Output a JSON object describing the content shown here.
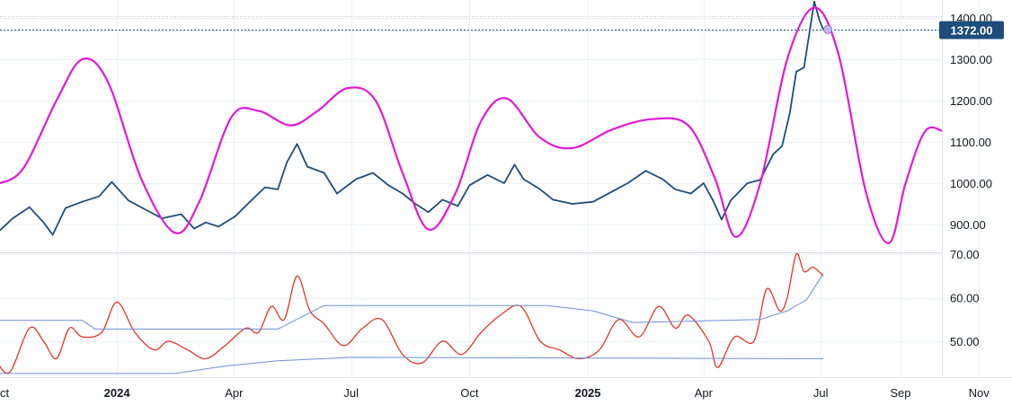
{
  "chart_data": [
    {
      "type": "line",
      "panel": "price",
      "y_axis": {
        "ticks": [
          "900.00",
          "1000.00",
          "1100.00",
          "1200.00",
          "1300.00",
          "1400.00"
        ],
        "tick_values": [
          900,
          1000,
          1100,
          1200,
          1300,
          1400
        ],
        "range": [
          860,
          1450
        ]
      },
      "x_axis": {
        "ticks": [
          "ct",
          "2024",
          "Apr",
          "Jul",
          "Oct",
          "2025",
          "Apr",
          "Jul",
          "Sep",
          "Nov"
        ],
        "bold_ticks": [
          "2024",
          "2025"
        ],
        "range": [
          "2023-09-30",
          "2025-12-15"
        ]
      },
      "last_price_label": "1372.00",
      "last_price": 1372,
      "upper_dotted_level": 1405,
      "series": [
        {
          "role": "price",
          "color": "#1e4d7a",
          "points": [
            [
              "2023-09-30",
              880
            ],
            [
              "2023-10-12",
              915
            ],
            [
              "2023-10-25",
              942
            ],
            [
              "2023-11-05",
              905
            ],
            [
              "2023-11-12",
              875
            ],
            [
              "2023-11-22",
              940
            ],
            [
              "2023-12-05",
              955
            ],
            [
              "2023-12-18",
              968
            ],
            [
              "2023-12-28",
              1003
            ],
            [
              "2024-01-10",
              958
            ],
            [
              "2024-01-22",
              938
            ],
            [
              "2024-02-05",
              915
            ],
            [
              "2024-02-20",
              925
            ],
            [
              "2024-03-01",
              890
            ],
            [
              "2024-03-10",
              905
            ],
            [
              "2024-03-20",
              895
            ],
            [
              "2024-04-02",
              920
            ],
            [
              "2024-04-15",
              960
            ],
            [
              "2024-04-25",
              990
            ],
            [
              "2024-05-05",
              985
            ],
            [
              "2024-05-12",
              1050
            ],
            [
              "2024-05-20",
              1095
            ],
            [
              "2024-05-28",
              1040
            ],
            [
              "2024-06-10",
              1025
            ],
            [
              "2024-06-20",
              975
            ],
            [
              "2024-07-05",
              1010
            ],
            [
              "2024-07-18",
              1025
            ],
            [
              "2024-07-30",
              995
            ],
            [
              "2024-08-10",
              975
            ],
            [
              "2024-08-20",
              950
            ],
            [
              "2024-08-30",
              930
            ],
            [
              "2024-09-10",
              960
            ],
            [
              "2024-09-22",
              945
            ],
            [
              "2024-10-01",
              995
            ],
            [
              "2024-10-15",
              1020
            ],
            [
              "2024-10-28",
              1000
            ],
            [
              "2024-11-05",
              1045
            ],
            [
              "2024-11-12",
              1010
            ],
            [
              "2024-11-25",
              985
            ],
            [
              "2024-12-05",
              960
            ],
            [
              "2024-12-20",
              950
            ],
            [
              "2025-01-05",
              955
            ],
            [
              "2025-01-20",
              980
            ],
            [
              "2025-02-01",
              1000
            ],
            [
              "2025-02-15",
              1030
            ],
            [
              "2025-02-28",
              1010
            ],
            [
              "2025-03-10",
              985
            ],
            [
              "2025-03-22",
              975
            ],
            [
              "2025-04-01",
              1000
            ],
            [
              "2025-04-08",
              960
            ],
            [
              "2025-04-15",
              912
            ],
            [
              "2025-04-22",
              958
            ],
            [
              "2025-05-05",
              1000
            ],
            [
              "2025-05-15",
              1008
            ],
            [
              "2025-05-25",
              1070
            ],
            [
              "2025-06-01",
              1090
            ],
            [
              "2025-06-07",
              1170
            ],
            [
              "2025-06-12",
              1270
            ],
            [
              "2025-06-18",
              1280
            ],
            [
              "2025-06-22",
              1360
            ],
            [
              "2025-06-26",
              1440
            ],
            [
              "2025-06-30",
              1395
            ],
            [
              "2025-07-03",
              1372
            ]
          ]
        },
        {
          "role": "cycle",
          "color": "#e219d6",
          "points": [
            [
              "2023-09-30",
              998
            ],
            [
              "2023-10-20",
              1035
            ],
            [
              "2023-11-15",
              1200
            ],
            [
              "2023-12-05",
              1300
            ],
            [
              "2023-12-25",
              1245
            ],
            [
              "2024-01-20",
              1010
            ],
            [
              "2024-02-15",
              880
            ],
            [
              "2024-03-05",
              955
            ],
            [
              "2024-03-30",
              1160
            ],
            [
              "2024-04-20",
              1175
            ],
            [
              "2024-05-15",
              1140
            ],
            [
              "2024-06-05",
              1175
            ],
            [
              "2024-06-28",
              1230
            ],
            [
              "2024-07-20",
              1200
            ],
            [
              "2024-08-10",
              1025
            ],
            [
              "2024-08-30",
              888
            ],
            [
              "2024-09-20",
              975
            ],
            [
              "2024-10-10",
              1150
            ],
            [
              "2024-10-30",
              1205
            ],
            [
              "2024-11-25",
              1110
            ],
            [
              "2024-12-20",
              1085
            ],
            [
              "2025-01-20",
              1130
            ],
            [
              "2025-02-20",
              1155
            ],
            [
              "2025-03-20",
              1140
            ],
            [
              "2025-04-10",
              1010
            ],
            [
              "2025-04-26",
              870
            ],
            [
              "2025-05-15",
              1000
            ],
            [
              "2025-06-05",
              1300
            ],
            [
              "2025-06-26",
              1425
            ],
            [
              "2025-07-15",
              1310
            ],
            [
              "2025-08-05",
              980
            ],
            [
              "2025-08-23",
              855
            ],
            [
              "2025-09-05",
              1000
            ],
            [
              "2025-09-20",
              1125
            ],
            [
              "2025-10-05",
              1125
            ],
            [
              "2025-10-26",
              1097
            ],
            [
              "2025-11-15",
              1158
            ],
            [
              "2025-11-30",
              1165
            ],
            [
              "2025-12-15",
              1100
            ]
          ]
        }
      ]
    },
    {
      "type": "line",
      "panel": "oscillator",
      "y_axis": {
        "ticks": [
          "50.00",
          "60.00",
          "70.00"
        ],
        "tick_values": [
          50,
          60,
          70
        ],
        "range": [
          43,
          71
        ]
      },
      "series": [
        {
          "role": "oscillator",
          "color": "#e5281b",
          "points": [
            [
              "2023-09-30",
              45
            ],
            [
              "2023-10-10",
              43
            ],
            [
              "2023-10-25",
              53
            ],
            [
              "2023-11-05",
              50
            ],
            [
              "2023-11-15",
              46
            ],
            [
              "2023-11-25",
              53
            ],
            [
              "2023-12-05",
              51
            ],
            [
              "2023-12-20",
              52
            ],
            [
              "2024-01-01",
              59
            ],
            [
              "2024-01-15",
              52
            ],
            [
              "2024-01-30",
              48
            ],
            [
              "2024-02-10",
              50
            ],
            [
              "2024-02-25",
              48
            ],
            [
              "2024-03-10",
              46
            ],
            [
              "2024-03-25",
              49
            ],
            [
              "2024-04-10",
              53
            ],
            [
              "2024-04-20",
              52
            ],
            [
              "2024-04-30",
              58
            ],
            [
              "2024-05-10",
              55
            ],
            [
              "2024-05-20",
              65
            ],
            [
              "2024-05-30",
              57
            ],
            [
              "2024-06-10",
              54
            ],
            [
              "2024-06-25",
              49
            ],
            [
              "2024-07-10",
              53
            ],
            [
              "2024-07-25",
              55
            ],
            [
              "2024-08-10",
              47
            ],
            [
              "2024-08-25",
              45
            ],
            [
              "2024-09-10",
              50
            ],
            [
              "2024-09-25",
              47
            ],
            [
              "2024-10-10",
              52
            ],
            [
              "2024-10-25",
              56
            ],
            [
              "2024-11-10",
              58
            ],
            [
              "2024-11-25",
              50
            ],
            [
              "2024-12-10",
              48
            ],
            [
              "2024-12-25",
              46
            ],
            [
              "2025-01-10",
              48
            ],
            [
              "2025-01-25",
              55
            ],
            [
              "2025-02-10",
              51
            ],
            [
              "2025-02-25",
              58
            ],
            [
              "2025-03-10",
              53
            ],
            [
              "2025-03-20",
              56
            ],
            [
              "2025-04-05",
              50
            ],
            [
              "2025-04-12",
              44
            ],
            [
              "2025-04-25",
              51
            ],
            [
              "2025-05-10",
              50
            ],
            [
              "2025-05-20",
              62
            ],
            [
              "2025-05-30",
              57
            ],
            [
              "2025-06-05",
              60
            ],
            [
              "2025-06-12",
              70
            ],
            [
              "2025-06-18",
              66
            ],
            [
              "2025-06-25",
              67
            ],
            [
              "2025-07-03",
              65
            ]
          ]
        },
        {
          "role": "upper-band",
          "color": "#6d8fd6",
          "points": [
            [
              "2023-09-30",
              54.8
            ],
            [
              "2023-12-05",
              54.8
            ],
            [
              "2023-12-15",
              52.8
            ],
            [
              "2024-05-05",
              52.8
            ],
            [
              "2024-06-10",
              58.2
            ],
            [
              "2024-11-30",
              58.2
            ],
            [
              "2025-01-05",
              57.0
            ],
            [
              "2025-02-05",
              54.3
            ],
            [
              "2025-05-15",
              55.0
            ],
            [
              "2025-06-05",
              57.0
            ],
            [
              "2025-06-20",
              59.5
            ],
            [
              "2025-07-03",
              65.5
            ]
          ]
        },
        {
          "role": "lower-band",
          "color": "#6d8fd6",
          "points": [
            [
              "2023-09-30",
              42.6
            ],
            [
              "2024-02-15",
              42.6
            ],
            [
              "2024-03-25",
              44.3
            ],
            [
              "2024-05-05",
              45.5
            ],
            [
              "2024-07-01",
              46.3
            ],
            [
              "2025-07-03",
              46.0
            ]
          ]
        }
      ]
    }
  ]
}
